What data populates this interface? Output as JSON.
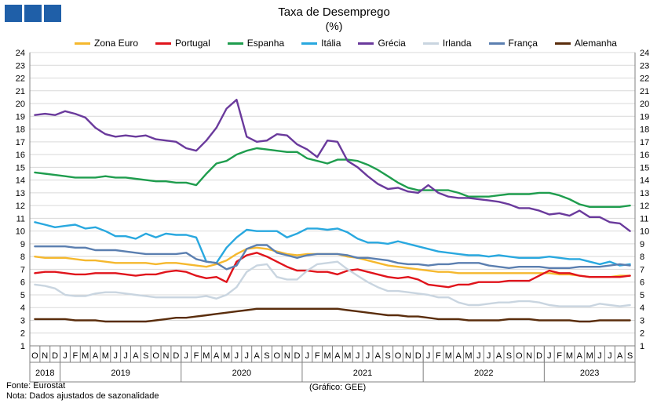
{
  "header": {
    "title": "Taxa de Desemprego",
    "subtitle": "(%)"
  },
  "footer": {
    "source": "Fonte: Eurostat",
    "note": "Nota: Dados ajustados de sazonalidade",
    "credit": "(Gráfico: GEE)"
  },
  "chart_data": {
    "type": "line",
    "title": "Taxa de Desemprego",
    "subtitle": "(%)",
    "ylim": [
      1,
      24
    ],
    "yticks": [
      1,
      2,
      3,
      4,
      5,
      6,
      7,
      8,
      9,
      10,
      11,
      12,
      13,
      14,
      15,
      16,
      17,
      18,
      19,
      20,
      21,
      22,
      23,
      24
    ],
    "grid": true,
    "legend_position": "top",
    "x_month_labels": [
      "O",
      "N",
      "D",
      "J",
      "F",
      "M",
      "A",
      "M",
      "J",
      "J",
      "A",
      "S",
      "O",
      "N",
      "D",
      "J",
      "F",
      "M",
      "A",
      "M",
      "J",
      "J",
      "A",
      "S",
      "O",
      "N",
      "D",
      "J",
      "F",
      "M",
      "A",
      "M",
      "J",
      "J",
      "A",
      "S",
      "O",
      "N",
      "D",
      "J",
      "F",
      "M",
      "A",
      "M",
      "J",
      "J",
      "A",
      "S",
      "O",
      "N",
      "D",
      "J",
      "F",
      "M",
      "A",
      "M",
      "J",
      "J",
      "A",
      "S"
    ],
    "year_groups": [
      {
        "label": "2018",
        "start": 0,
        "count": 3
      },
      {
        "label": "2019",
        "start": 3,
        "count": 12
      },
      {
        "label": "2020",
        "start": 15,
        "count": 12
      },
      {
        "label": "2021",
        "start": 27,
        "count": 12
      },
      {
        "label": "2022",
        "start": 39,
        "count": 12
      },
      {
        "label": "2023",
        "start": 51,
        "count": 9
      }
    ],
    "series": [
      {
        "name": "Zona Euro",
        "color": "#f5b82e",
        "values": [
          8.0,
          7.9,
          7.9,
          7.9,
          7.8,
          7.7,
          7.7,
          7.6,
          7.5,
          7.5,
          7.5,
          7.5,
          7.4,
          7.5,
          7.5,
          7.4,
          7.3,
          7.2,
          7.4,
          7.7,
          8.2,
          8.6,
          8.7,
          8.6,
          8.4,
          8.2,
          8.1,
          8.2,
          8.2,
          8.2,
          8.2,
          8.0,
          7.9,
          7.7,
          7.5,
          7.3,
          7.2,
          7.1,
          7.0,
          6.9,
          6.8,
          6.8,
          6.7,
          6.7,
          6.7,
          6.7,
          6.7,
          6.7,
          6.7,
          6.7,
          6.7,
          6.7,
          6.6,
          6.6,
          6.5,
          6.4,
          6.4,
          6.4,
          6.5,
          6.5
        ]
      },
      {
        "name": "Portugal",
        "color": "#e0141c",
        "values": [
          6.7,
          6.8,
          6.8,
          6.7,
          6.6,
          6.6,
          6.7,
          6.7,
          6.7,
          6.6,
          6.5,
          6.6,
          6.6,
          6.8,
          6.9,
          6.8,
          6.5,
          6.3,
          6.4,
          6.0,
          7.6,
          8.1,
          8.3,
          8.0,
          7.6,
          7.2,
          6.9,
          6.9,
          6.8,
          6.8,
          6.6,
          6.9,
          7.0,
          6.8,
          6.6,
          6.4,
          6.3,
          6.4,
          6.2,
          5.8,
          5.7,
          5.6,
          5.8,
          5.8,
          6.0,
          6.0,
          6.0,
          6.1,
          6.1,
          6.1,
          6.5,
          6.9,
          6.7,
          6.7,
          6.5,
          6.4,
          6.4,
          6.4,
          6.4,
          6.5
        ]
      },
      {
        "name": "Espanha",
        "color": "#1f9d4e",
        "values": [
          14.6,
          14.5,
          14.4,
          14.3,
          14.2,
          14.2,
          14.2,
          14.3,
          14.2,
          14.2,
          14.1,
          14.0,
          13.9,
          13.9,
          13.8,
          13.8,
          13.6,
          14.5,
          15.3,
          15.5,
          16.0,
          16.3,
          16.5,
          16.4,
          16.3,
          16.2,
          16.2,
          15.7,
          15.5,
          15.3,
          15.6,
          15.6,
          15.5,
          15.2,
          14.8,
          14.3,
          13.8,
          13.4,
          13.2,
          13.2,
          13.2,
          13.2,
          13.0,
          12.7,
          12.7,
          12.7,
          12.8,
          12.9,
          12.9,
          12.9,
          13.0,
          13.0,
          12.8,
          12.5,
          12.1,
          11.9,
          11.9,
          11.9,
          11.9,
          12.0
        ]
      },
      {
        "name": "Itália",
        "color": "#29a8df",
        "values": [
          10.7,
          10.5,
          10.3,
          10.4,
          10.5,
          10.2,
          10.3,
          10.0,
          9.6,
          9.6,
          9.4,
          9.8,
          9.5,
          9.8,
          9.7,
          9.7,
          9.5,
          7.6,
          7.5,
          8.7,
          9.5,
          10.1,
          10.0,
          10.0,
          10.0,
          9.5,
          9.8,
          10.2,
          10.2,
          10.1,
          10.2,
          9.9,
          9.4,
          9.1,
          9.1,
          9.0,
          9.2,
          9.0,
          8.8,
          8.6,
          8.4,
          8.3,
          8.2,
          8.1,
          8.1,
          8.0,
          8.1,
          8.0,
          7.9,
          7.9,
          7.9,
          8.0,
          7.9,
          7.8,
          7.8,
          7.6,
          7.4,
          7.6,
          7.3,
          7.4
        ]
      },
      {
        "name": "Grécia",
        "color": "#6a3a9c",
        "values": [
          19.1,
          19.2,
          19.1,
          19.4,
          19.2,
          18.9,
          18.1,
          17.6,
          17.4,
          17.5,
          17.4,
          17.5,
          17.2,
          17.1,
          17.0,
          16.5,
          16.3,
          17.1,
          18.1,
          19.6,
          20.3,
          17.4,
          17.0,
          17.1,
          17.6,
          17.5,
          16.8,
          16.4,
          15.8,
          17.1,
          17.0,
          15.5,
          15.0,
          14.3,
          13.7,
          13.3,
          13.4,
          13.1,
          13.0,
          13.6,
          13.0,
          12.7,
          12.6,
          12.6,
          12.5,
          12.4,
          12.3,
          12.1,
          11.8,
          11.8,
          11.6,
          11.3,
          11.4,
          11.2,
          11.6,
          11.1,
          11.1,
          10.7,
          10.6,
          10.0
        ]
      },
      {
        "name": "Irlanda",
        "color": "#c9d5e0",
        "values": [
          5.8,
          5.7,
          5.5,
          5.0,
          4.9,
          4.9,
          5.1,
          5.2,
          5.2,
          5.1,
          5.0,
          4.9,
          4.8,
          4.8,
          4.8,
          4.8,
          4.8,
          4.9,
          4.7,
          5.0,
          5.6,
          6.8,
          7.3,
          7.4,
          6.4,
          6.2,
          6.2,
          6.9,
          7.4,
          7.5,
          7.6,
          7.0,
          6.5,
          6.0,
          5.6,
          5.3,
          5.3,
          5.2,
          5.1,
          5.0,
          4.8,
          4.8,
          4.4,
          4.2,
          4.2,
          4.3,
          4.4,
          4.4,
          4.5,
          4.5,
          4.4,
          4.2,
          4.1,
          4.1,
          4.1,
          4.1,
          4.3,
          4.2,
          4.1,
          4.2
        ]
      },
      {
        "name": "França",
        "color": "#5b7fb0",
        "values": [
          8.8,
          8.8,
          8.8,
          8.8,
          8.7,
          8.7,
          8.5,
          8.5,
          8.5,
          8.4,
          8.3,
          8.2,
          8.2,
          8.2,
          8.2,
          8.3,
          7.8,
          7.6,
          7.5,
          7.0,
          7.3,
          8.6,
          8.9,
          8.9,
          8.3,
          8.1,
          7.9,
          8.1,
          8.2,
          8.2,
          8.2,
          8.1,
          7.9,
          7.9,
          7.8,
          7.7,
          7.5,
          7.4,
          7.4,
          7.3,
          7.4,
          7.4,
          7.5,
          7.5,
          7.5,
          7.3,
          7.2,
          7.1,
          7.2,
          7.2,
          7.2,
          7.1,
          7.1,
          7.1,
          7.2,
          7.2,
          7.2,
          7.3,
          7.4,
          7.3
        ]
      },
      {
        "name": "Alemanha",
        "color": "#5a2d0c",
        "values": [
          3.1,
          3.1,
          3.1,
          3.1,
          3.0,
          3.0,
          3.0,
          2.9,
          2.9,
          2.9,
          2.9,
          2.9,
          3.0,
          3.1,
          3.2,
          3.2,
          3.3,
          3.4,
          3.5,
          3.6,
          3.7,
          3.8,
          3.9,
          3.9,
          3.9,
          3.9,
          3.9,
          3.9,
          3.9,
          3.9,
          3.9,
          3.8,
          3.7,
          3.6,
          3.5,
          3.4,
          3.4,
          3.3,
          3.3,
          3.2,
          3.1,
          3.1,
          3.1,
          3.0,
          3.0,
          3.0,
          3.0,
          3.1,
          3.1,
          3.1,
          3.0,
          3.0,
          3.0,
          3.0,
          2.9,
          2.9,
          3.0,
          3.0,
          3.0,
          3.0
        ]
      }
    ]
  }
}
